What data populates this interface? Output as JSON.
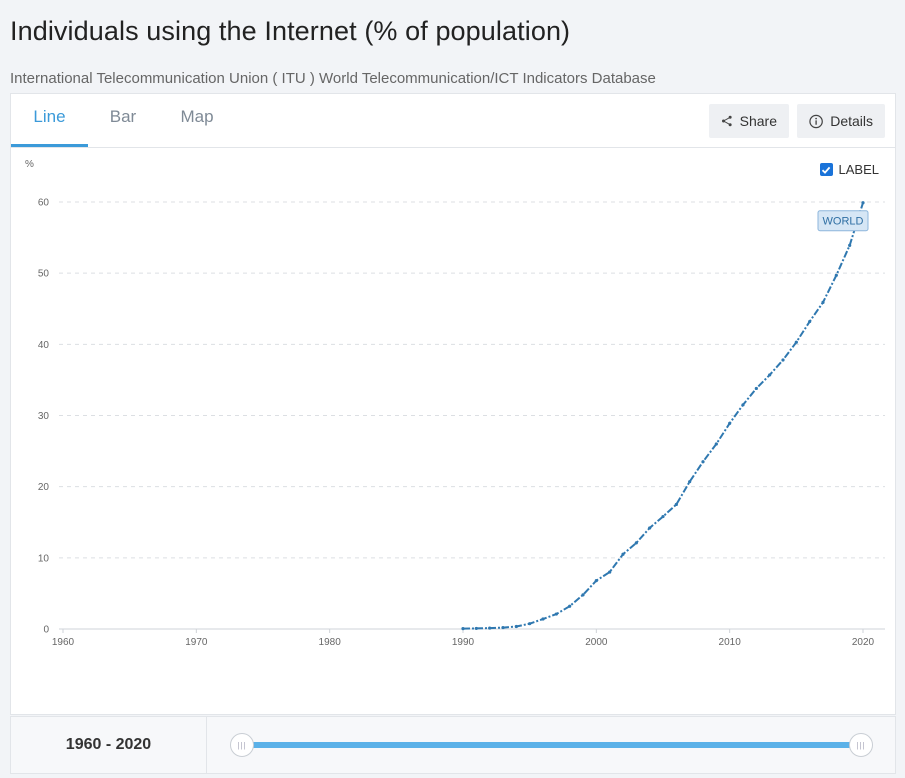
{
  "page": {
    "title": "Individuals using the Internet (% of population)",
    "source": "International Telecommunication Union ( ITU ) World Telecommunication/ICT Indicators Database"
  },
  "tabs": [
    {
      "label": "Line",
      "active": true
    },
    {
      "label": "Bar",
      "active": false
    },
    {
      "label": "Map",
      "active": false
    }
  ],
  "toolbar": {
    "share_label": "Share",
    "details_label": "Details"
  },
  "label_toggle": {
    "label": "LABEL",
    "checked": true
  },
  "colors": {
    "accent": "#3b9ad9",
    "series": "#2f78b0",
    "label_bg": "#d6e6f5"
  },
  "range": {
    "text": "1960 - 2020",
    "start": 1960,
    "end": 2020
  },
  "chart_data": {
    "type": "line",
    "title": "Individuals using the Internet (% of population)",
    "ylabel": "%",
    "xlabel": "",
    "ylim": [
      0,
      60
    ],
    "xlim": [
      1960,
      2020
    ],
    "yticks": [
      0,
      10,
      20,
      30,
      40,
      50,
      60
    ],
    "xticks": [
      1960,
      1970,
      1980,
      1990,
      2000,
      2010,
      2020
    ],
    "grid": true,
    "series": [
      {
        "name": "WORLD",
        "x": [
          1990,
          1991,
          1992,
          1993,
          1994,
          1995,
          1996,
          1997,
          1998,
          1999,
          2000,
          2001,
          2002,
          2003,
          2004,
          2005,
          2006,
          2007,
          2008,
          2009,
          2010,
          2011,
          2012,
          2013,
          2014,
          2015,
          2016,
          2017,
          2018,
          2019,
          2020
        ],
        "values": [
          0.05,
          0.08,
          0.13,
          0.2,
          0.35,
          0.75,
          1.4,
          2.1,
          3.2,
          4.8,
          6.8,
          8.0,
          10.5,
          12.1,
          14.2,
          15.8,
          17.5,
          20.7,
          23.5,
          26.0,
          28.9,
          31.5,
          33.8,
          35.7,
          37.8,
          40.3,
          43.2,
          45.9,
          49.7,
          53.9,
          59.9
        ]
      }
    ],
    "series_label": "WORLD"
  }
}
